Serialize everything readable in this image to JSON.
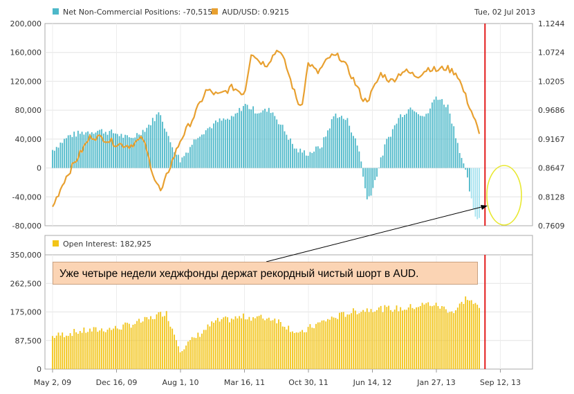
{
  "header": {
    "date": "Tue, 02 Jul 2013"
  },
  "legend": {
    "net_label": "Net Non-Commercial Positions: -70,515",
    "aud_label": "AUD/USD: 0.9215",
    "oi_label": "Open Interest: 182,925"
  },
  "annotation": {
    "text": "Уже четыре недели хеджфонды держат рекордный чистый шорт в AUD."
  },
  "colors": {
    "net_bar": "#4db8c9",
    "net_bar_recent": "#a5e2ef",
    "aud_line": "#e8a030",
    "oi_bar": "#f2c418",
    "marker": "#e31a1a",
    "highlight_ellipse": "#e8e830"
  },
  "chart_data": [
    {
      "id": "net-positions",
      "type": "bar",
      "series": [
        {
          "name": "Net Non-Commercial Positions",
          "x": [
            "2009-05-02",
            "2009-07-01",
            "2009-09-01",
            "2009-10-15",
            "2009-12-16",
            "2010-02-01",
            "2010-04-01",
            "2010-05-20",
            "2010-06-20",
            "2010-08-01",
            "2010-10-01",
            "2010-12-15",
            "2011-02-01",
            "2011-03-16",
            "2011-05-01",
            "2011-06-20",
            "2011-08-01",
            "2011-09-15",
            "2011-10-30",
            "2011-12-15",
            "2012-02-01",
            "2012-03-20",
            "2012-05-01",
            "2012-05-25",
            "2012-06-14",
            "2012-08-01",
            "2012-09-20",
            "2012-11-01",
            "2012-12-20",
            "2013-01-27",
            "2013-03-10",
            "2013-04-20",
            "2013-05-20",
            "2013-06-10",
            "2013-07-02"
          ],
          "values": [
            25000,
            45000,
            50000,
            52000,
            48000,
            40000,
            55000,
            78000,
            40000,
            10000,
            45000,
            65000,
            68000,
            88000,
            78000,
            80000,
            55000,
            25000,
            20000,
            30000,
            75000,
            65000,
            20000,
            -45000,
            -30000,
            35000,
            72000,
            85000,
            70000,
            100000,
            85000,
            25000,
            -20000,
            -65000,
            -70515
          ]
        },
        {
          "name": "AUD/USD",
          "x": [
            "2009-05-02",
            "2009-06-15",
            "2009-08-01",
            "2009-09-15",
            "2009-11-01",
            "2009-12-16",
            "2010-02-01",
            "2010-03-20",
            "2010-05-01",
            "2010-05-25",
            "2010-06-15",
            "2010-08-01",
            "2010-09-15",
            "2010-11-01",
            "2010-12-15",
            "2011-02-01",
            "2011-03-16",
            "2011-04-10",
            "2011-05-01",
            "2011-06-01",
            "2011-07-15",
            "2011-08-10",
            "2011-09-20",
            "2011-10-05",
            "2011-10-30",
            "2011-12-01",
            "2012-01-15",
            "2012-02-20",
            "2012-04-01",
            "2012-05-15",
            "2012-06-01",
            "2012-07-15",
            "2012-08-20",
            "2012-10-01",
            "2012-11-20",
            "2013-01-01",
            "2013-01-27",
            "2013-03-01",
            "2013-04-10",
            "2013-05-10",
            "2013-06-10",
            "2013-07-02"
          ],
          "values": [
            0.795,
            0.845,
            0.885,
            0.922,
            0.918,
            0.908,
            0.905,
            0.918,
            0.845,
            0.82,
            0.855,
            0.915,
            0.955,
            1.005,
            0.995,
            1.01,
            0.998,
            1.075,
            1.06,
            1.05,
            1.08,
            1.05,
            0.985,
            0.975,
            1.055,
            1.035,
            1.065,
            1.065,
            1.03,
            0.985,
            0.99,
            1.035,
            1.02,
            1.04,
            1.03,
            1.045,
            1.04,
            1.045,
            1.035,
            0.995,
            0.955,
            0.9215
          ]
        }
      ],
      "ylim": [
        -80000,
        200000
      ],
      "y2lim": [
        0.7609,
        1.1244
      ],
      "y_ticks": [
        "200,000",
        "160,000",
        "120,000",
        "80,000",
        "40,000",
        "0",
        "-40,000",
        "-80,000"
      ],
      "y2_ticks": [
        "1.1244",
        "1.0724",
        "1.0205",
        "0.9686",
        "0.9167",
        "0.8647",
        "0.8128",
        "0.7609"
      ],
      "grid": true
    },
    {
      "id": "open-interest",
      "type": "bar",
      "series": [
        {
          "name": "Open Interest",
          "x": [
            "2009-05-02",
            "2009-08-01",
            "2009-12-16",
            "2010-04-01",
            "2010-06-10",
            "2010-08-01",
            "2010-12-01",
            "2011-03-16",
            "2011-07-01",
            "2011-10-01",
            "2011-10-30",
            "2012-01-01",
            "2012-04-01",
            "2012-06-14",
            "2012-10-01",
            "2013-01-01",
            "2013-01-27",
            "2013-04-01",
            "2013-05-15",
            "2013-07-02"
          ],
          "values": [
            100000,
            115000,
            125000,
            150000,
            175000,
            60000,
            145000,
            160000,
            155000,
            105000,
            125000,
            150000,
            175000,
            185000,
            185000,
            200000,
            195000,
            175000,
            220000,
            182925
          ]
        }
      ],
      "ylim": [
        0,
        350000
      ],
      "y_ticks": [
        "350,000",
        "262,500",
        "175,000",
        "87,500",
        "0"
      ],
      "grid": true
    }
  ],
  "x_axis": {
    "ticks": [
      {
        "label": "May 2, 09",
        "date": "2009-05-02"
      },
      {
        "label": "Dec 16, 09",
        "date": "2009-12-16"
      },
      {
        "label": "Aug 1, 10",
        "date": "2010-08-01"
      },
      {
        "label": "Mar 16, 11",
        "date": "2011-03-16"
      },
      {
        "label": "Oct 30, 11",
        "date": "2011-10-30"
      },
      {
        "label": "Jun 14, 12",
        "date": "2012-06-14"
      },
      {
        "label": "Jan 27, 13",
        "date": "2013-01-27"
      },
      {
        "label": "Sep 12, 13",
        "date": "2013-09-12"
      }
    ],
    "marker_date": "2013-07-02"
  }
}
